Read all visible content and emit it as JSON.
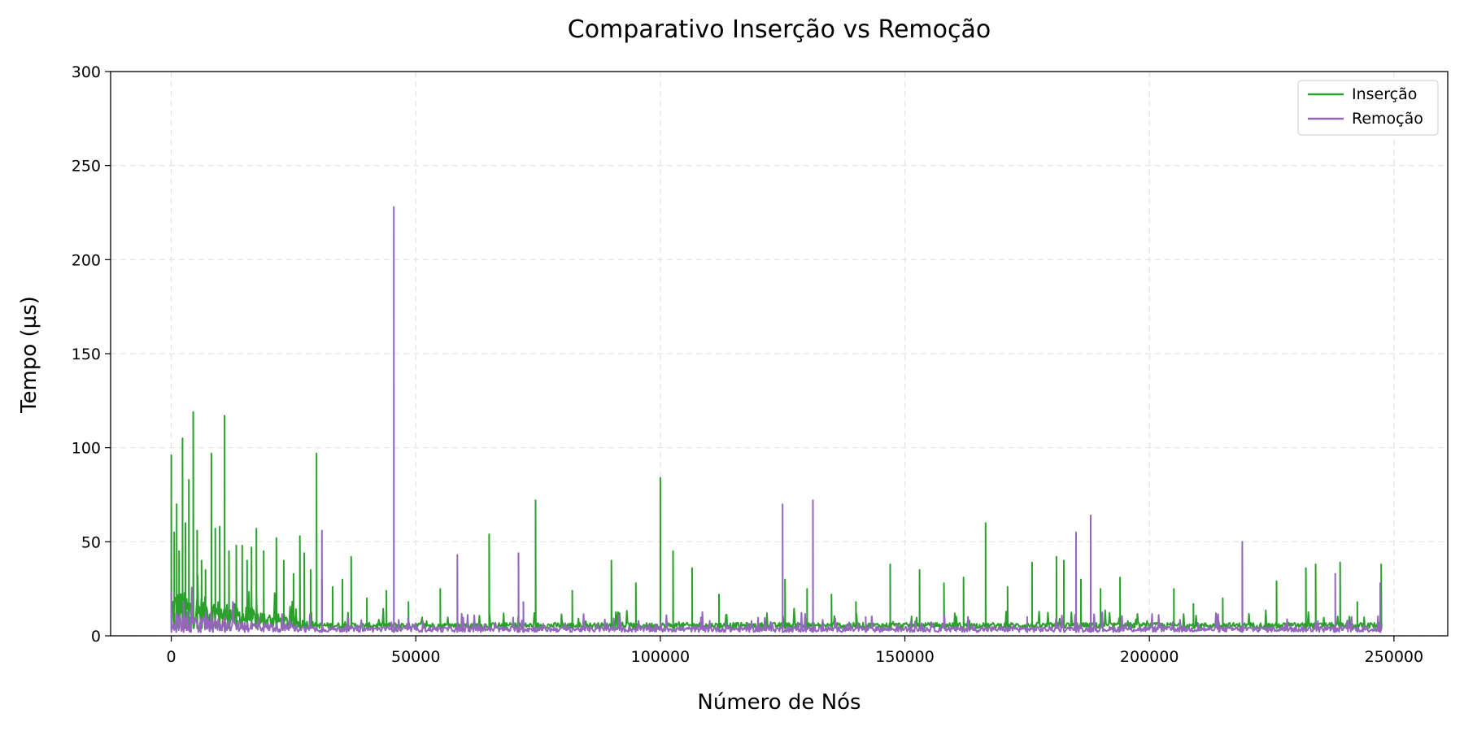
{
  "chart_data": {
    "type": "line",
    "title": "Comparativo Inserção vs Remoção",
    "xlabel": "Número de Nós",
    "ylabel": "Tempo (µs)",
    "xlim": [
      -12400,
      261000
    ],
    "ylim": [
      0,
      300
    ],
    "xticks": [
      0,
      50000,
      100000,
      150000,
      200000,
      250000
    ],
    "yticks": [
      0,
      50,
      100,
      150,
      200,
      250,
      300
    ],
    "grid": true,
    "legend_position": "top-right",
    "x_range": [
      0,
      247500
    ],
    "baseline": {
      "insercao": 4,
      "remocao": 2
    },
    "series": [
      {
        "name": "Inserção",
        "color": "#2ca02c",
        "spikes": [
          [
            0,
            96
          ],
          [
            600,
            55
          ],
          [
            1100,
            70
          ],
          [
            1600,
            45
          ],
          [
            2300,
            105
          ],
          [
            2900,
            60
          ],
          [
            3600,
            83
          ],
          [
            4500,
            119
          ],
          [
            5300,
            56
          ],
          [
            6200,
            40
          ],
          [
            7000,
            35
          ],
          [
            8200,
            97
          ],
          [
            9000,
            57
          ],
          [
            9900,
            58
          ],
          [
            10900,
            117
          ],
          [
            11800,
            45
          ],
          [
            13300,
            48
          ],
          [
            14500,
            48
          ],
          [
            15500,
            40
          ],
          [
            16400,
            47
          ],
          [
            17400,
            57
          ],
          [
            18900,
            45
          ],
          [
            21500,
            52
          ],
          [
            23000,
            40
          ],
          [
            25000,
            33
          ],
          [
            26300,
            53
          ],
          [
            27200,
            44
          ],
          [
            28500,
            35
          ],
          [
            29700,
            97
          ],
          [
            30800,
            30
          ],
          [
            33000,
            26
          ],
          [
            35000,
            30
          ],
          [
            36800,
            42
          ],
          [
            40000,
            20
          ],
          [
            44000,
            24
          ],
          [
            48500,
            18
          ],
          [
            55000,
            25
          ],
          [
            65000,
            54
          ],
          [
            74500,
            72
          ],
          [
            82000,
            24
          ],
          [
            90000,
            40
          ],
          [
            95000,
            28
          ],
          [
            100000,
            84
          ],
          [
            102600,
            45
          ],
          [
            106500,
            36
          ],
          [
            112000,
            22
          ],
          [
            125500,
            30
          ],
          [
            130000,
            25
          ],
          [
            135000,
            22
          ],
          [
            140000,
            18
          ],
          [
            147000,
            38
          ],
          [
            153000,
            35
          ],
          [
            158000,
            28
          ],
          [
            162000,
            31
          ],
          [
            166500,
            60
          ],
          [
            171000,
            26
          ],
          [
            176000,
            39
          ],
          [
            181000,
            42
          ],
          [
            182500,
            40
          ],
          [
            186000,
            30
          ],
          [
            190000,
            25
          ],
          [
            194000,
            31
          ],
          [
            205000,
            25
          ],
          [
            209000,
            17
          ],
          [
            215000,
            20
          ],
          [
            226000,
            29
          ],
          [
            232000,
            36
          ],
          [
            234000,
            38
          ],
          [
            239000,
            39
          ],
          [
            242500,
            18
          ],
          [
            247400,
            38
          ]
        ]
      },
      {
        "name": "Remoção",
        "color": "#9467bd",
        "spikes": [
          [
            0,
            23
          ],
          [
            1000,
            12
          ],
          [
            2500,
            18
          ],
          [
            4000,
            10
          ],
          [
            6000,
            9
          ],
          [
            8500,
            8
          ],
          [
            11000,
            10
          ],
          [
            15000,
            7
          ],
          [
            30800,
            56
          ],
          [
            45500,
            228
          ],
          [
            58500,
            43
          ],
          [
            71000,
            44
          ],
          [
            72000,
            18
          ],
          [
            125000,
            70
          ],
          [
            131200,
            72
          ],
          [
            142000,
            10
          ],
          [
            175000,
            10
          ],
          [
            185000,
            55
          ],
          [
            188000,
            64
          ],
          [
            219000,
            50
          ],
          [
            238000,
            33
          ],
          [
            247200,
            28
          ]
        ]
      }
    ]
  }
}
